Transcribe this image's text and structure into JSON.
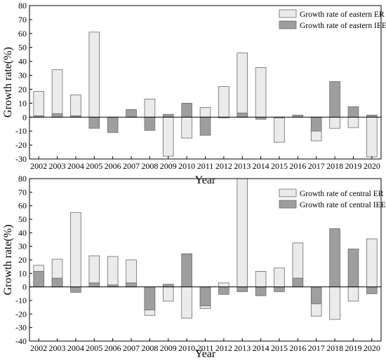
{
  "colors": {
    "er": "#ebebeb",
    "iee": "#9e9e9e",
    "stroke": "#6a6a6a",
    "axis": "#000000"
  },
  "chart_data": [
    {
      "type": "bar",
      "categories": [
        "2002",
        "2003",
        "2004",
        "2005",
        "2006",
        "2007",
        "2008",
        "2009",
        "2010",
        "2011",
        "2012",
        "2013",
        "2014",
        "2015",
        "2016",
        "2017",
        "2018",
        "2019",
        "2020"
      ],
      "xlabel": "Year",
      "ylabel": "Growth rate(%)",
      "ylim": [
        -30,
        80
      ],
      "yticks": [
        -30,
        -20,
        -10,
        0,
        10,
        20,
        30,
        40,
        50,
        60,
        70,
        80
      ],
      "legend_position": "top-right",
      "grid": false,
      "series": [
        {
          "name": "Growth rate of eastern ER",
          "color_key": "er",
          "values": [
            18.5,
            34,
            16,
            61,
            0,
            0,
            13,
            -28,
            -15,
            7,
            22,
            46,
            35.5,
            -18,
            0,
            -17,
            -8,
            -7.5,
            -28.5
          ]
        },
        {
          "name": "Growth rate of eastern IEE",
          "color_key": "iee",
          "values": [
            1,
            2.5,
            1,
            -8,
            -11,
            5.5,
            -9.5,
            2,
            10,
            -13,
            -0.5,
            3,
            -1.5,
            -0.5,
            1.5,
            -10,
            25.5,
            7.5,
            1.5
          ]
        }
      ]
    },
    {
      "type": "bar",
      "categories": [
        "2002",
        "2003",
        "2004",
        "2005",
        "2006",
        "2007",
        "2008",
        "2009",
        "2010",
        "2011",
        "2012",
        "2013",
        "2014",
        "2015",
        "2016",
        "2017",
        "2018",
        "2019",
        "2020"
      ],
      "xlabel": "Year",
      "ylabel": "Growth rate(%)",
      "ylim": [
        -40,
        80
      ],
      "yticks": [
        -40,
        -30,
        -20,
        -10,
        0,
        10,
        20,
        30,
        40,
        50,
        60,
        70,
        80
      ],
      "legend_position": "top-right",
      "grid": false,
      "series": [
        {
          "name": "Growth rate of central ER",
          "color_key": "er",
          "values": [
            16,
            20.5,
            55,
            23,
            22.5,
            20,
            -21,
            -10.5,
            -23,
            -16,
            3,
            80,
            11.5,
            14,
            32.5,
            -21.5,
            -24,
            -10.5,
            35.5
          ]
        },
        {
          "name": "Growth rate of central IEE",
          "color_key": "iee",
          "values": [
            11.5,
            6.5,
            -4,
            3,
            1.5,
            3,
            -17,
            2,
            24.5,
            -14,
            -5.5,
            -3.5,
            -6.5,
            -3.5,
            6.5,
            -12.5,
            43,
            28,
            -5
          ]
        }
      ]
    }
  ]
}
